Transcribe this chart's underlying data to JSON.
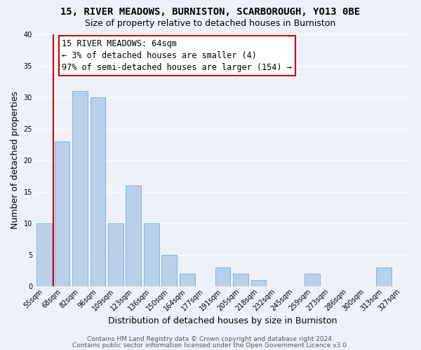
{
  "title": "15, RIVER MEADOWS, BURNISTON, SCARBOROUGH, YO13 0BE",
  "subtitle": "Size of property relative to detached houses in Burniston",
  "xlabel": "Distribution of detached houses by size in Burniston",
  "ylabel": "Number of detached properties",
  "bar_labels": [
    "55sqm",
    "68sqm",
    "82sqm",
    "96sqm",
    "109sqm",
    "123sqm",
    "136sqm",
    "150sqm",
    "164sqm",
    "177sqm",
    "191sqm",
    "205sqm",
    "218sqm",
    "232sqm",
    "245sqm",
    "259sqm",
    "273sqm",
    "286sqm",
    "300sqm",
    "313sqm",
    "327sqm"
  ],
  "bar_values": [
    10,
    23,
    31,
    30,
    10,
    16,
    10,
    5,
    2,
    0,
    3,
    2,
    1,
    0,
    0,
    2,
    0,
    0,
    0,
    3,
    0
  ],
  "bar_color": "#b8d0ea",
  "bar_edge_color": "#7aaad0",
  "highlight_color": "#cc0000",
  "ylim": [
    0,
    40
  ],
  "yticks": [
    0,
    5,
    10,
    15,
    20,
    25,
    30,
    35,
    40
  ],
  "annotation_title": "15 RIVER MEADOWS: 64sqm",
  "annotation_line1": "← 3% of detached houses are smaller (4)",
  "annotation_line2": "97% of semi-detached houses are larger (154) →",
  "annotation_box_color": "#ffffff",
  "annotation_border_color": "#cc0000",
  "footer_line1": "Contains HM Land Registry data © Crown copyright and database right 2024.",
  "footer_line2": "Contains public sector information licensed under the Open Government Licence v3.0.",
  "background_color": "#edf2fa",
  "grid_color": "#ffffff",
  "title_fontsize": 10,
  "subtitle_fontsize": 9,
  "axis_label_fontsize": 9,
  "tick_fontsize": 7,
  "footer_fontsize": 6.5,
  "annotation_fontsize": 8.5,
  "red_line_x": 0.5
}
